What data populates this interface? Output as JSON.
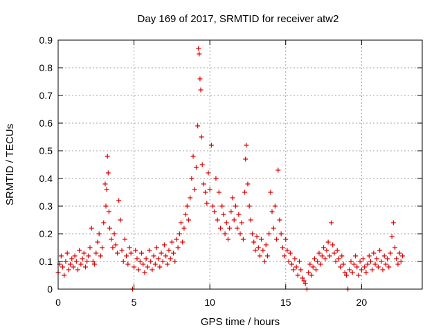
{
  "chart_data": {
    "type": "scatter",
    "title": "Day 169 of 2017, SRMTID for receiver atw2",
    "xlabel": "GPS time / hours",
    "ylabel": "SRMTID / TECUs",
    "xlim": [
      0,
      24
    ],
    "ylim": [
      0,
      0.9
    ],
    "xticks": [
      0,
      5,
      10,
      15,
      20
    ],
    "xtick_labels": [
      "0",
      "5",
      "10",
      "15",
      "20"
    ],
    "yticks": [
      0,
      0.1,
      0.2,
      0.3,
      0.4,
      0.5,
      0.6,
      0.7,
      0.8,
      0.9
    ],
    "ytick_labels": [
      "0",
      "0.1",
      "0.2",
      "0.3",
      "0.4",
      "0.5",
      "0.6",
      "0.7",
      "0.8",
      "0.9"
    ],
    "grid": true,
    "marker": "+",
    "color": "#e00000",
    "series": [
      {
        "name": "SRMTID",
        "x": [
          0.0,
          0.1,
          0.2,
          0.3,
          0.4,
          0.5,
          0.6,
          0.7,
          0.8,
          0.9,
          1.0,
          1.1,
          1.2,
          1.3,
          1.4,
          1.5,
          1.6,
          1.7,
          1.8,
          1.9,
          2.0,
          2.1,
          2.2,
          2.3,
          2.4,
          2.5,
          2.6,
          2.7,
          2.8,
          2.9,
          3.0,
          3.1,
          3.15,
          3.2,
          3.25,
          3.3,
          3.35,
          3.4,
          3.5,
          3.6,
          3.7,
          3.8,
          3.9,
          4.0,
          4.1,
          4.2,
          4.3,
          4.4,
          4.5,
          4.6,
          4.7,
          4.8,
          4.9,
          5.0,
          5.1,
          5.2,
          5.3,
          5.4,
          5.5,
          5.6,
          5.7,
          5.8,
          5.9,
          6.0,
          6.1,
          6.2,
          6.3,
          6.4,
          6.5,
          6.6,
          6.7,
          6.8,
          6.9,
          7.0,
          7.1,
          7.2,
          7.3,
          7.4,
          7.5,
          7.6,
          7.7,
          7.8,
          7.9,
          8.0,
          8.1,
          8.2,
          8.3,
          8.4,
          8.5,
          8.6,
          8.7,
          8.8,
          8.9,
          9.0,
          9.1,
          9.2,
          9.25,
          9.3,
          9.35,
          9.4,
          9.45,
          9.5,
          9.6,
          9.7,
          9.8,
          9.9,
          10.0,
          10.1,
          10.2,
          10.3,
          10.4,
          10.5,
          10.6,
          10.7,
          10.8,
          10.9,
          11.0,
          11.1,
          11.2,
          11.3,
          11.4,
          11.5,
          11.6,
          11.7,
          11.8,
          11.9,
          12.0,
          12.1,
          12.2,
          12.3,
          12.35,
          12.4,
          12.5,
          12.6,
          12.7,
          12.8,
          12.9,
          13.0,
          13.1,
          13.2,
          13.3,
          13.4,
          13.5,
          13.6,
          13.7,
          13.8,
          13.9,
          14.0,
          14.1,
          14.2,
          14.3,
          14.4,
          14.5,
          14.6,
          14.7,
          14.8,
          14.9,
          15.0,
          15.1,
          15.2,
          15.3,
          15.4,
          15.5,
          15.6,
          15.7,
          15.8,
          15.9,
          16.0,
          16.1,
          16.2,
          16.3,
          16.4,
          16.5,
          16.6,
          16.7,
          16.8,
          16.9,
          17.0,
          17.1,
          17.2,
          17.3,
          17.4,
          17.5,
          17.6,
          17.7,
          17.8,
          17.9,
          18.0,
          18.1,
          18.2,
          18.3,
          18.4,
          18.5,
          18.6,
          18.7,
          18.8,
          18.9,
          19.0,
          19.1,
          19.2,
          19.3,
          19.4,
          19.5,
          19.6,
          19.7,
          19.8,
          19.9,
          20.0,
          20.1,
          20.2,
          20.3,
          20.4,
          20.5,
          20.6,
          20.7,
          20.8,
          20.9,
          21.0,
          21.1,
          21.2,
          21.3,
          21.4,
          21.5,
          21.6,
          21.7,
          21.8,
          21.9,
          22.0,
          22.1,
          22.2,
          22.3,
          22.4,
          22.5,
          22.6,
          22.7
        ],
        "y": [
          0.06,
          0.09,
          0.12,
          0.08,
          0.05,
          0.1,
          0.13,
          0.07,
          0.09,
          0.11,
          0.08,
          0.12,
          0.1,
          0.07,
          0.14,
          0.09,
          0.11,
          0.13,
          0.08,
          0.1,
          0.12,
          0.15,
          0.22,
          0.1,
          0.09,
          0.13,
          0.17,
          0.2,
          0.12,
          0.15,
          0.24,
          0.38,
          0.3,
          0.36,
          0.48,
          0.42,
          0.28,
          0.22,
          0.18,
          0.15,
          0.2,
          0.16,
          0.13,
          0.32,
          0.25,
          0.14,
          0.1,
          0.18,
          0.12,
          0.09,
          0.15,
          0.13,
          0.0,
          0.08,
          0.14,
          0.11,
          0.07,
          0.1,
          0.13,
          0.09,
          0.06,
          0.11,
          0.08,
          0.14,
          0.1,
          0.07,
          0.12,
          0.09,
          0.15,
          0.11,
          0.08,
          0.13,
          0.1,
          0.16,
          0.12,
          0.09,
          0.14,
          0.11,
          0.17,
          0.13,
          0.1,
          0.18,
          0.15,
          0.2,
          0.24,
          0.17,
          0.22,
          0.27,
          0.3,
          0.25,
          0.33,
          0.4,
          0.48,
          0.36,
          0.44,
          0.59,
          0.87,
          0.85,
          0.76,
          0.72,
          0.55,
          0.45,
          0.38,
          0.35,
          0.31,
          0.42,
          0.36,
          0.52,
          0.3,
          0.28,
          0.4,
          0.25,
          0.35,
          0.22,
          0.3,
          0.27,
          0.2,
          0.24,
          0.18,
          0.22,
          0.28,
          0.33,
          0.25,
          0.3,
          0.22,
          0.27,
          0.2,
          0.24,
          0.18,
          0.35,
          0.47,
          0.52,
          0.38,
          0.3,
          0.25,
          0.2,
          0.17,
          0.14,
          0.19,
          0.15,
          0.12,
          0.18,
          0.14,
          0.1,
          0.16,
          0.12,
          0.2,
          0.35,
          0.28,
          0.22,
          0.3,
          0.18,
          0.43,
          0.25,
          0.2,
          0.15,
          0.12,
          0.18,
          0.14,
          0.1,
          0.13,
          0.09,
          0.07,
          0.11,
          0.08,
          0.05,
          0.1,
          0.07,
          0.04,
          0.03,
          0.02,
          0.0,
          0.06,
          0.09,
          0.05,
          0.08,
          0.11,
          0.07,
          0.1,
          0.13,
          0.09,
          0.12,
          0.15,
          0.11,
          0.14,
          0.17,
          0.12,
          0.24,
          0.16,
          0.13,
          0.1,
          0.14,
          0.11,
          0.08,
          0.12,
          0.09,
          0.06,
          0.05,
          0.0,
          0.07,
          0.1,
          0.06,
          0.09,
          0.12,
          0.08,
          0.05,
          0.1,
          0.07,
          0.11,
          0.08,
          0.06,
          0.09,
          0.12,
          0.1,
          0.07,
          0.13,
          0.09,
          0.11,
          0.08,
          0.14,
          0.1,
          0.07,
          0.12,
          0.09,
          0.11,
          0.08,
          0.13,
          0.19,
          0.24,
          0.15,
          0.11,
          0.09,
          0.13,
          0.1,
          0.12
        ]
      }
    ]
  }
}
